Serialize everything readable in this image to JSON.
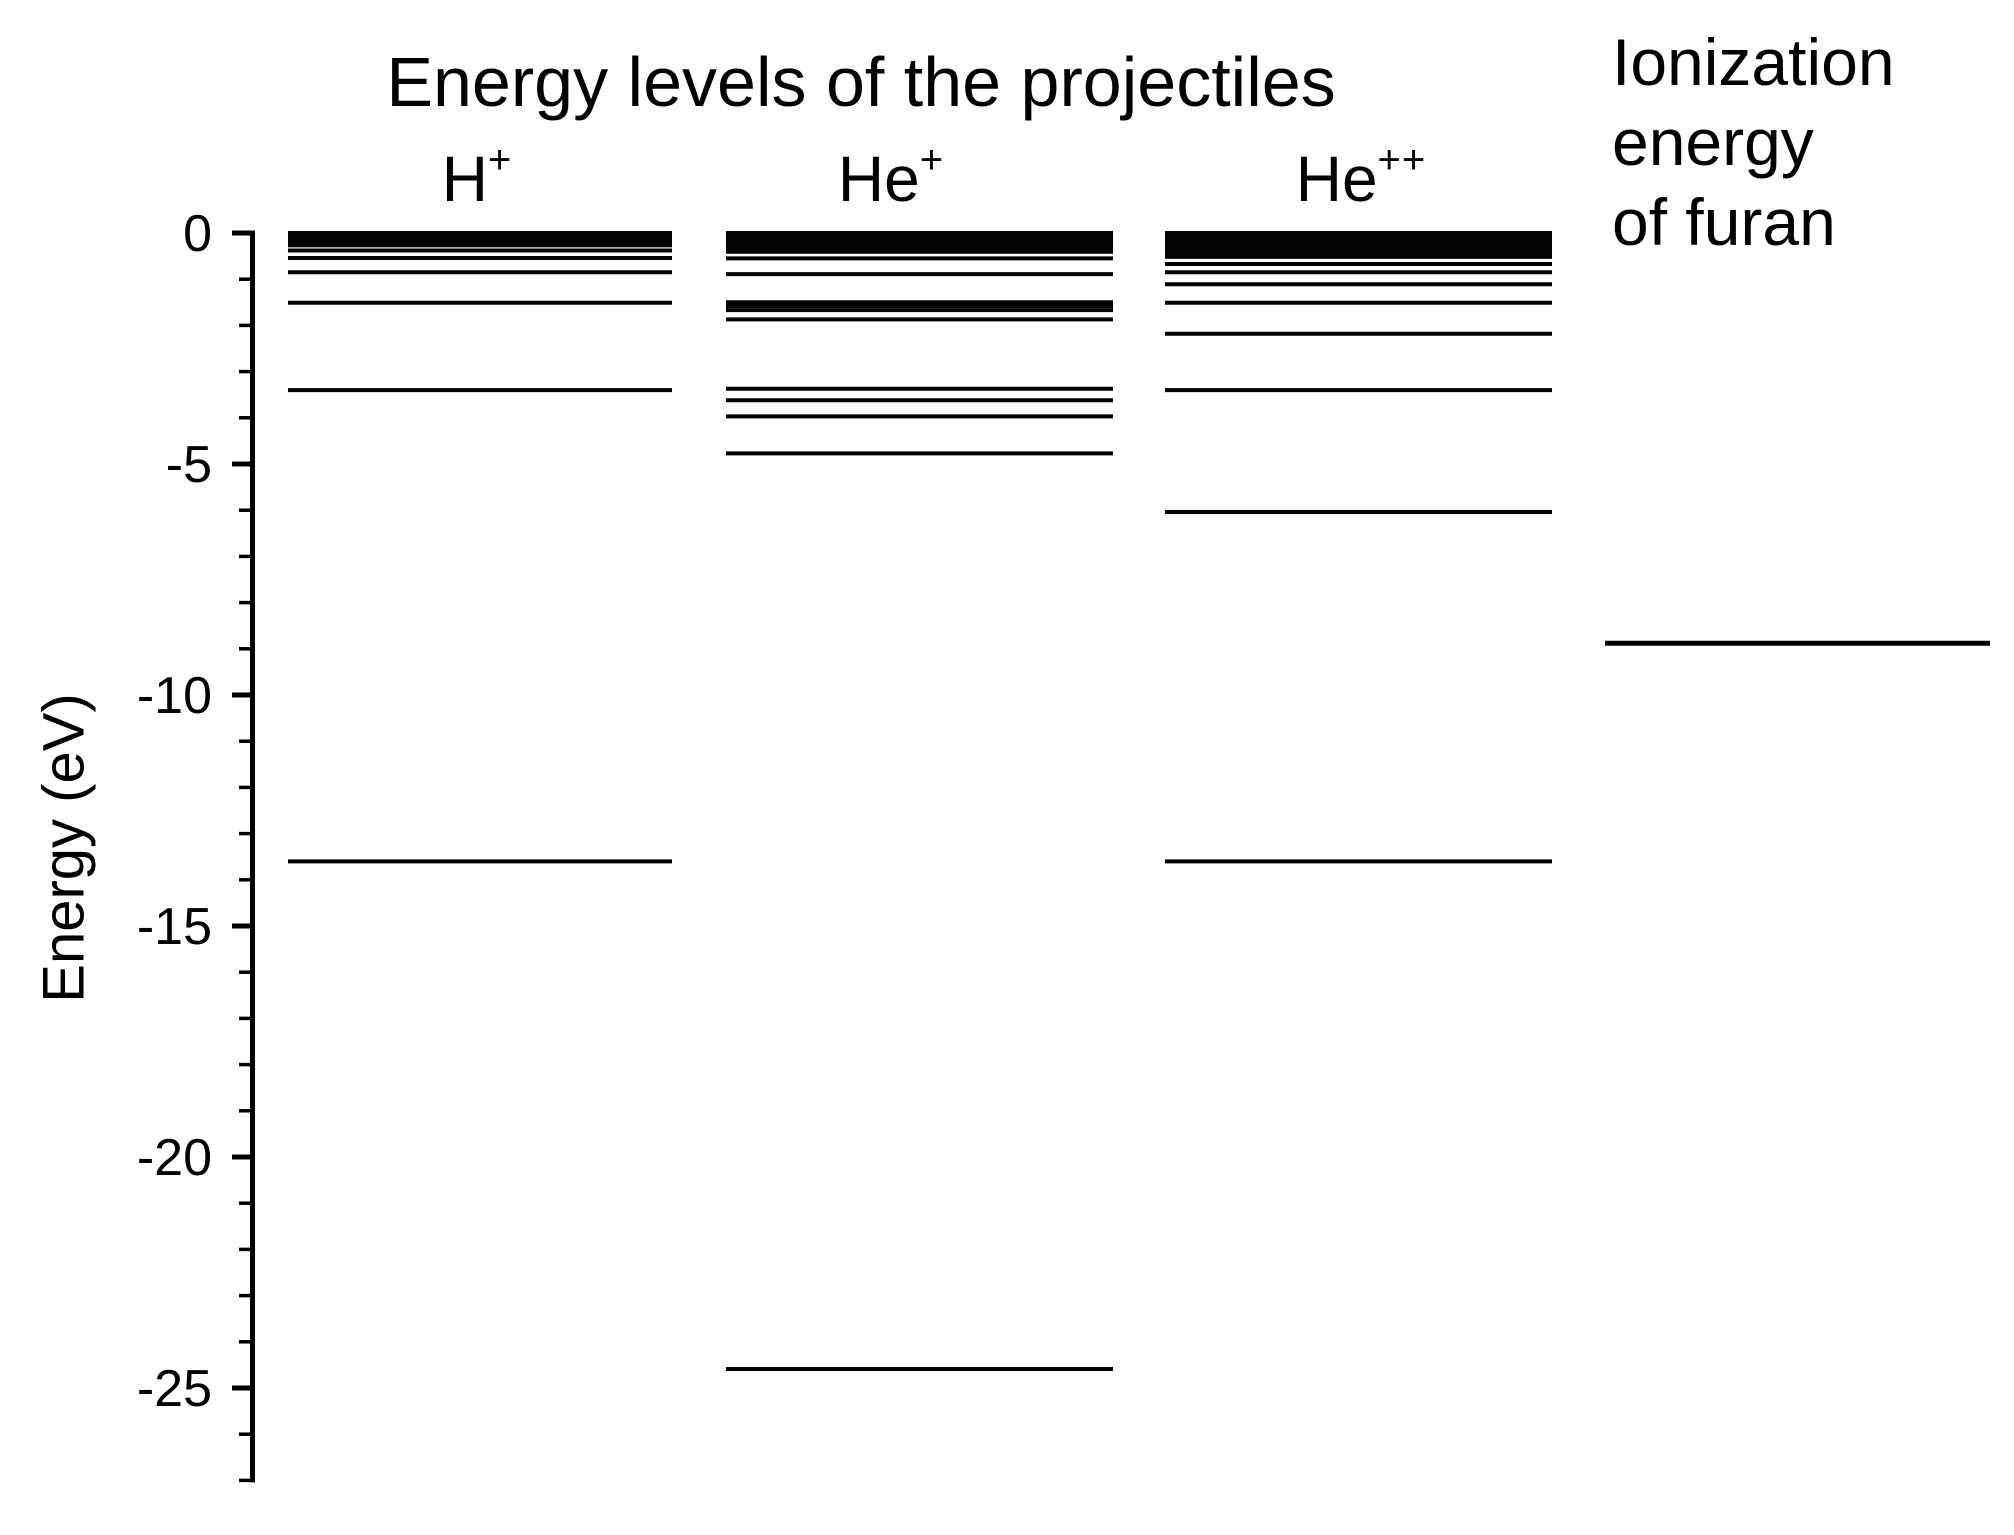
{
  "chart_data": {
    "type": "energy-level-diagram",
    "title": "Energy levels of the projectiles",
    "ylabel": "Energy (eV)",
    "colors": {
      "foreground": "#000000",
      "background": "#ffffff"
    },
    "y_axis": {
      "unit": "eV",
      "range": [
        0,
        -27
      ],
      "major_tick_values": [
        0,
        -5,
        -10,
        -15,
        -20,
        -25
      ],
      "major_tick_labels": [
        "0",
        "-5",
        "-10",
        "-15",
        "-20",
        "-25"
      ],
      "minor_tick_step_ev": 1
    },
    "columns": [
      {
        "id": "h-plus",
        "label": "H",
        "charge_superscript": "+",
        "quasi_continuum_band_ev": [
          0,
          -0.31
        ],
        "levels_ev": [
          -0.38,
          -0.54,
          -0.85,
          -1.51,
          -3.4,
          -13.6
        ]
      },
      {
        "id": "he-plus",
        "label": "He",
        "charge_superscript": "+",
        "quasi_continuum_band_ev": [
          0,
          -0.45
        ],
        "levels_ev": [
          -0.55,
          -0.89,
          -1.5,
          -1.58,
          -1.67,
          -1.87,
          -3.37,
          -3.62,
          -3.97,
          -4.77,
          -24.59
        ]
      },
      {
        "id": "he-2plus",
        "label": "He",
        "charge_superscript": "++",
        "quasi_continuum_band_ev": [
          0,
          -0.56
        ],
        "levels_ev": [
          -0.67,
          -0.85,
          -1.11,
          -1.51,
          -2.18,
          -3.4,
          -6.04,
          -13.6
        ]
      }
    ],
    "reference": {
      "header_lines": [
        "Ionization",
        "energy",
        "of furan"
      ],
      "level_ev": -8.88
    }
  }
}
